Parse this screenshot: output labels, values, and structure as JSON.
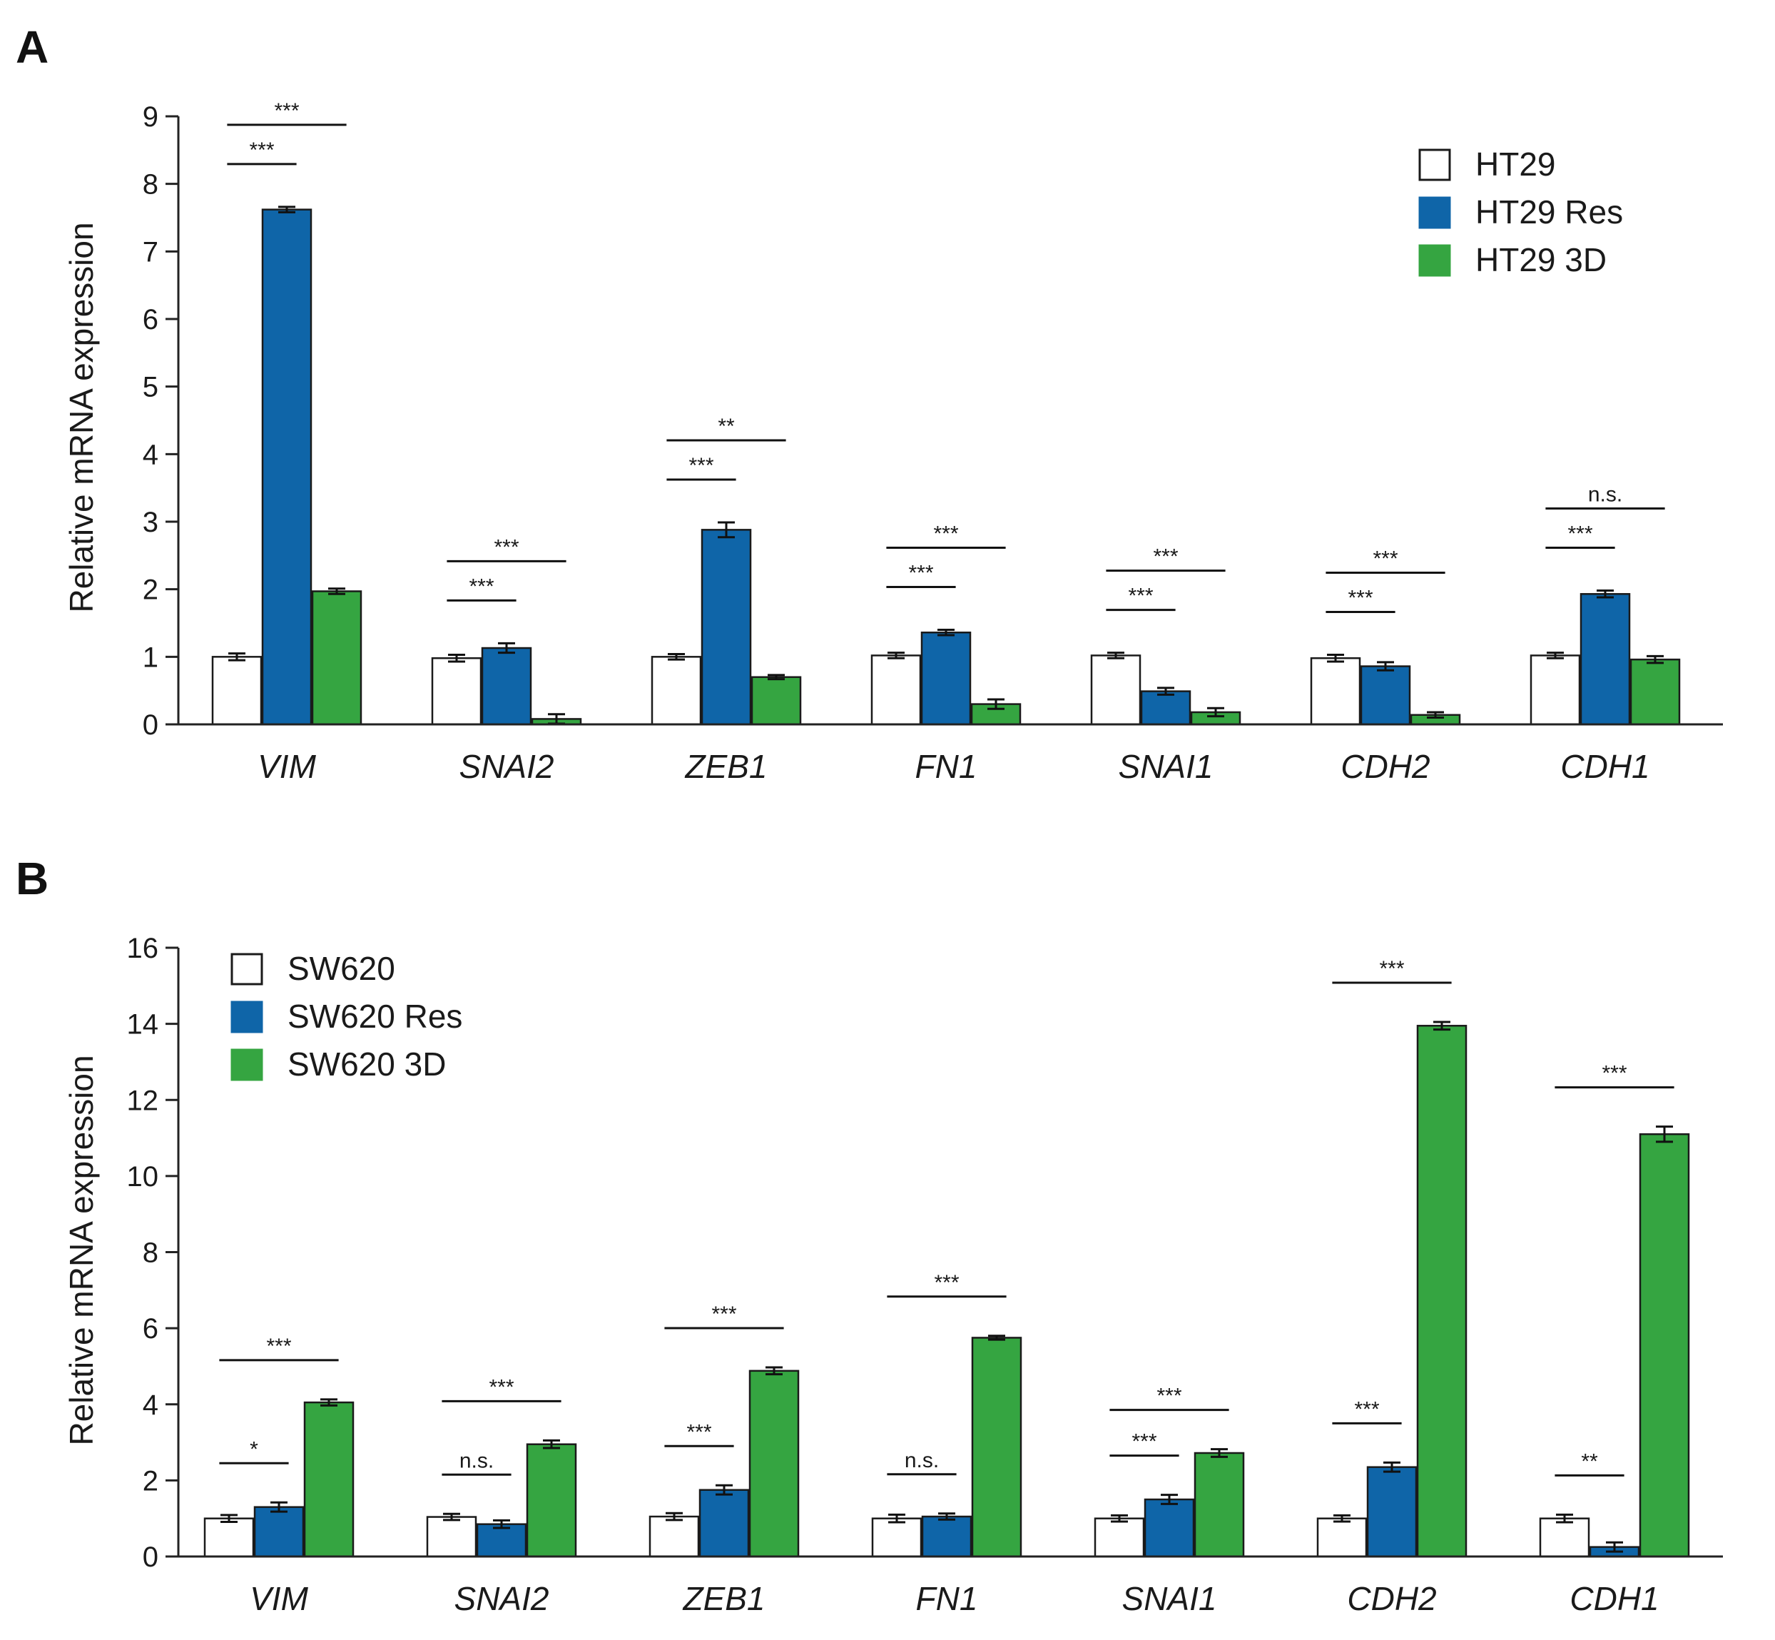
{
  "chart_data": [
    {
      "panel": "A",
      "type": "bar",
      "ylabel": "Relative mRNA expression",
      "ylim": [
        0,
        9
      ],
      "yticks": [
        0,
        1,
        2,
        3,
        4,
        5,
        6,
        7,
        8,
        9
      ],
      "categories": [
        "VIM",
        "SNAI2",
        "ZEB1",
        "FN1",
        "SNAI1",
        "CDH2",
        "CDH1"
      ],
      "legend_position": "top-right",
      "series": [
        {
          "name": "HT29",
          "color": "#ffffff",
          "values": [
            1.0,
            0.98,
            1.0,
            1.02,
            1.02,
            0.98,
            1.02
          ],
          "errors": [
            0.05,
            0.05,
            0.04,
            0.04,
            0.04,
            0.05,
            0.04
          ]
        },
        {
          "name": "HT29 Res",
          "color": "#0f65a8",
          "values": [
            7.62,
            1.13,
            2.88,
            1.36,
            0.49,
            0.86,
            1.93
          ],
          "errors": [
            0.04,
            0.07,
            0.11,
            0.04,
            0.05,
            0.06,
            0.05
          ]
        },
        {
          "name": "HT29 3D",
          "color": "#35a541",
          "values": [
            1.97,
            0.08,
            0.7,
            0.3,
            0.18,
            0.14,
            0.96
          ],
          "errors": [
            0.04,
            0.07,
            0.03,
            0.07,
            0.06,
            0.04,
            0.05
          ]
        }
      ],
      "significance": [
        {
          "category": "VIM",
          "pair": [
            "HT29",
            "HT29 Res"
          ],
          "label": "***"
        },
        {
          "category": "VIM",
          "pair": [
            "HT29",
            "HT29 3D"
          ],
          "label": "***"
        },
        {
          "category": "SNAI2",
          "pair": [
            "HT29",
            "HT29 Res"
          ],
          "label": "***"
        },
        {
          "category": "SNAI2",
          "pair": [
            "HT29",
            "HT29 3D"
          ],
          "label": "***"
        },
        {
          "category": "ZEB1",
          "pair": [
            "HT29",
            "HT29 Res"
          ],
          "label": "***"
        },
        {
          "category": "ZEB1",
          "pair": [
            "HT29",
            "HT29 3D"
          ],
          "label": "**"
        },
        {
          "category": "FN1",
          "pair": [
            "HT29",
            "HT29 Res"
          ],
          "label": "***"
        },
        {
          "category": "FN1",
          "pair": [
            "HT29",
            "HT29 3D"
          ],
          "label": "***"
        },
        {
          "category": "SNAI1",
          "pair": [
            "HT29",
            "HT29 Res"
          ],
          "label": "***"
        },
        {
          "category": "SNAI1",
          "pair": [
            "HT29",
            "HT29 3D"
          ],
          "label": "***"
        },
        {
          "category": "CDH2",
          "pair": [
            "HT29",
            "HT29 Res"
          ],
          "label": "***"
        },
        {
          "category": "CDH2",
          "pair": [
            "HT29",
            "HT29 3D"
          ],
          "label": "***"
        },
        {
          "category": "CDH1",
          "pair": [
            "HT29",
            "HT29 Res"
          ],
          "label": "***"
        },
        {
          "category": "CDH1",
          "pair": [
            "HT29",
            "HT29 3D"
          ],
          "label": "n.s."
        }
      ]
    },
    {
      "panel": "B",
      "type": "bar",
      "ylabel": "Relative mRNA expression",
      "ylim": [
        0,
        16
      ],
      "yticks": [
        0,
        2,
        4,
        6,
        8,
        10,
        12,
        14,
        16
      ],
      "categories": [
        "VIM",
        "SNAI2",
        "ZEB1",
        "FN1",
        "SNAI1",
        "CDH2",
        "CDH1"
      ],
      "legend_position": "top-left",
      "series": [
        {
          "name": "SW620",
          "color": "#ffffff",
          "values": [
            1.0,
            1.04,
            1.05,
            1.0,
            1.0,
            1.0,
            1.0
          ],
          "errors": [
            0.09,
            0.08,
            0.09,
            0.1,
            0.08,
            0.08,
            0.1
          ]
        },
        {
          "name": "SW620 Res",
          "color": "#0f65a8",
          "values": [
            1.3,
            0.85,
            1.75,
            1.05,
            1.5,
            2.35,
            0.25
          ],
          "errors": [
            0.12,
            0.1,
            0.12,
            0.08,
            0.12,
            0.12,
            0.12
          ]
        },
        {
          "name": "SW620 3D",
          "color": "#35a541",
          "values": [
            4.05,
            2.95,
            4.88,
            5.75,
            2.72,
            13.95,
            11.1
          ],
          "errors": [
            0.08,
            0.1,
            0.09,
            0.05,
            0.1,
            0.1,
            0.2
          ]
        }
      ],
      "significance": [
        {
          "category": "VIM",
          "pair": [
            "SW620",
            "SW620 Res"
          ],
          "label": "*"
        },
        {
          "category": "VIM",
          "pair": [
            "SW620",
            "SW620 3D"
          ],
          "label": "***"
        },
        {
          "category": "SNAI2",
          "pair": [
            "SW620",
            "SW620 Res"
          ],
          "label": "n.s."
        },
        {
          "category": "SNAI2",
          "pair": [
            "SW620",
            "SW620 3D"
          ],
          "label": "***"
        },
        {
          "category": "ZEB1",
          "pair": [
            "SW620",
            "SW620 Res"
          ],
          "label": "***"
        },
        {
          "category": "ZEB1",
          "pair": [
            "SW620",
            "SW620 3D"
          ],
          "label": "***"
        },
        {
          "category": "FN1",
          "pair": [
            "SW620",
            "SW620 Res"
          ],
          "label": "n.s."
        },
        {
          "category": "FN1",
          "pair": [
            "SW620",
            "SW620 3D"
          ],
          "label": "***"
        },
        {
          "category": "SNAI1",
          "pair": [
            "SW620",
            "SW620 Res"
          ],
          "label": "***"
        },
        {
          "category": "SNAI1",
          "pair": [
            "SW620",
            "SW620 3D"
          ],
          "label": "***"
        },
        {
          "category": "CDH2",
          "pair": [
            "SW620",
            "SW620 Res"
          ],
          "label": "***"
        },
        {
          "category": "CDH2",
          "pair": [
            "SW620",
            "SW620 3D"
          ],
          "label": "***"
        },
        {
          "category": "CDH1",
          "pair": [
            "SW620",
            "SW620 Res"
          ],
          "label": "**"
        },
        {
          "category": "CDH1",
          "pair": [
            "SW620",
            "SW620 3D"
          ],
          "label": "***"
        }
      ]
    }
  ]
}
